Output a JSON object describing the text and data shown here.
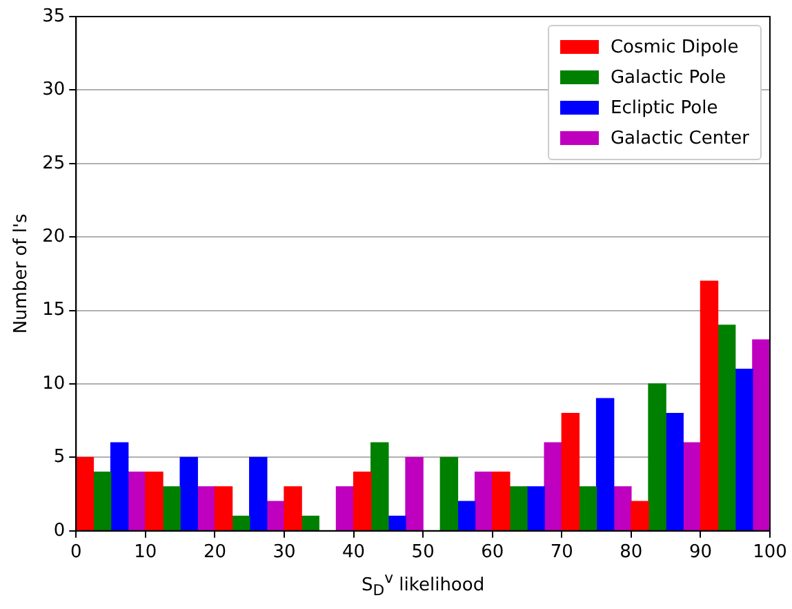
{
  "chart_data": {
    "type": "histogram",
    "xlabel": "S$_{D}$$^{v}$ likelihood",
    "ylabel": "Number of l's",
    "bins": [
      0,
      10,
      20,
      30,
      40,
      50,
      60,
      70,
      80,
      90,
      100
    ],
    "series": [
      {
        "name": "Cosmic Dipole",
        "color": "#ff0000",
        "values": [
          5,
          4,
          3,
          3,
          4,
          0,
          4,
          8,
          2,
          17
        ]
      },
      {
        "name": "Galactic Pole",
        "color": "#008000",
        "values": [
          4,
          3,
          1,
          1,
          6,
          5,
          3,
          3,
          10,
          14
        ]
      },
      {
        "name": "Ecliptic Pole",
        "color": "#0000ff",
        "values": [
          6,
          5,
          5,
          0,
          1,
          2,
          3,
          9,
          8,
          11
        ]
      },
      {
        "name": "Galactic Center",
        "color": "#bf00bf",
        "values": [
          4,
          3,
          2,
          3,
          5,
          4,
          6,
          3,
          6,
          13
        ]
      }
    ],
    "xlim": [
      0,
      100
    ],
    "xticks": [
      0,
      10,
      20,
      30,
      40,
      50,
      60,
      70,
      80,
      90,
      100
    ],
    "ylim": [
      0,
      35
    ],
    "yticks": [
      0,
      5,
      10,
      15,
      20,
      25,
      30,
      35
    ],
    "grid": "y",
    "legend": "top right"
  }
}
